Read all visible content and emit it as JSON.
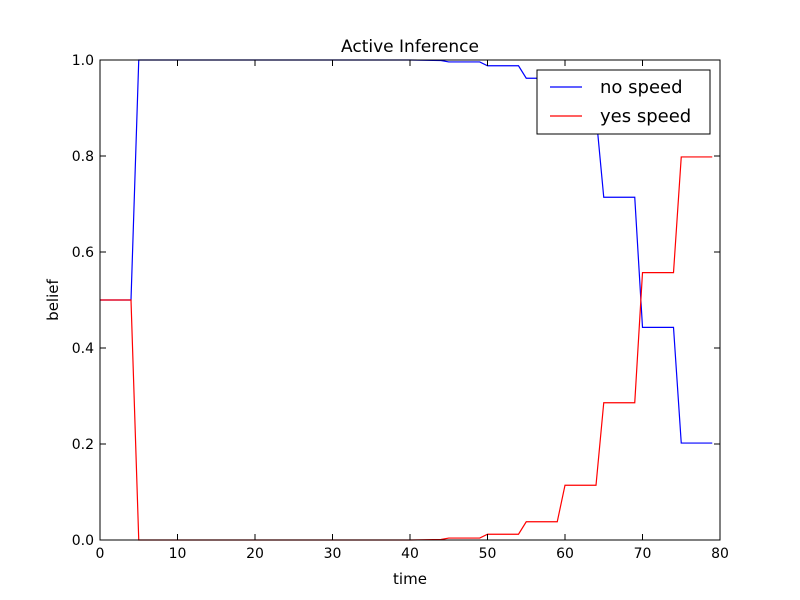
{
  "chart_data": {
    "type": "line",
    "title": "Active Inference",
    "xlabel": "time",
    "ylabel": "belief",
    "xlim": [
      0,
      80
    ],
    "ylim": [
      0.0,
      1.0
    ],
    "xticks": [
      "0",
      "10",
      "20",
      "30",
      "40",
      "50",
      "60",
      "70",
      "80"
    ],
    "yticks": [
      "0.0",
      "0.2",
      "0.4",
      "0.6",
      "0.8",
      "1.0"
    ],
    "grid": false,
    "legend_position": "top-right",
    "series": [
      {
        "name": "no speed",
        "color": "#0000ff",
        "x": [
          0,
          4,
          5,
          40,
          44,
          45,
          49,
          50,
          54,
          55,
          59,
          60,
          64,
          65,
          69,
          70,
          74,
          75,
          79
        ],
        "y": [
          0.5,
          0.5,
          1.0,
          1.0,
          0.999,
          0.996,
          0.996,
          0.988,
          0.988,
          0.962,
          0.962,
          0.886,
          0.886,
          0.714,
          0.714,
          0.443,
          0.443,
          0.202,
          0.202
        ]
      },
      {
        "name": "yes speed",
        "color": "#ff0000",
        "x": [
          0,
          4,
          5,
          40,
          44,
          45,
          49,
          50,
          54,
          55,
          59,
          60,
          64,
          65,
          69,
          70,
          74,
          75,
          79
        ],
        "y": [
          0.5,
          0.5,
          0.0,
          0.0,
          0.001,
          0.004,
          0.004,
          0.012,
          0.012,
          0.038,
          0.038,
          0.114,
          0.114,
          0.286,
          0.286,
          0.557,
          0.557,
          0.798,
          0.798
        ]
      }
    ]
  }
}
